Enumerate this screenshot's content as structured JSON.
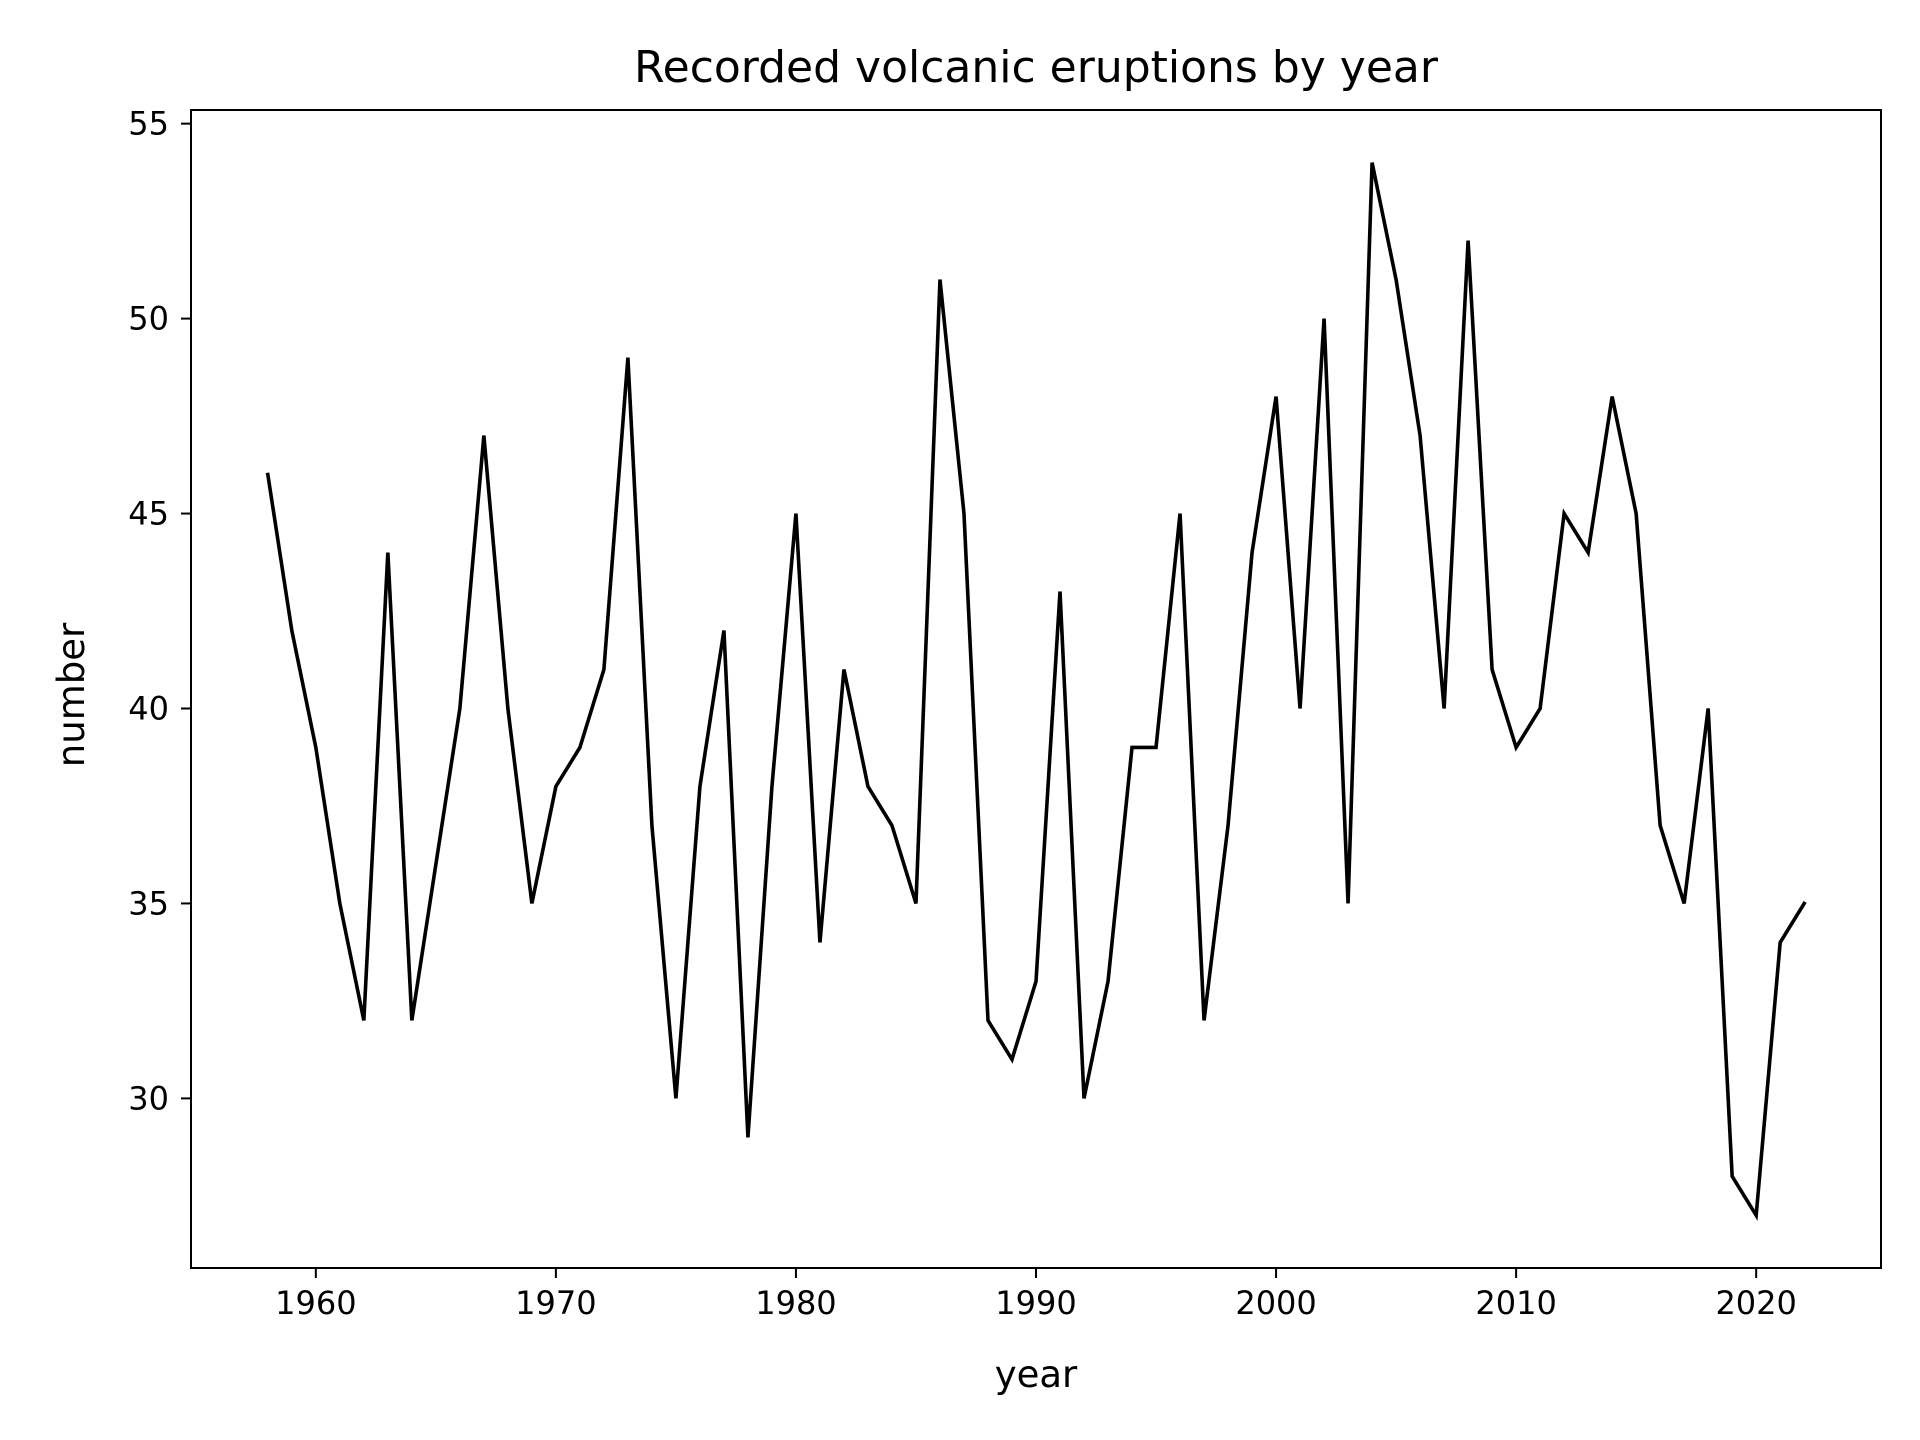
{
  "chart_data": {
    "type": "line",
    "title": "Recorded volcanic eruptions by year",
    "xlabel": "year",
    "ylabel": "number",
    "xlim": [
      1954.8,
      2025.2
    ],
    "ylim": [
      25.65,
      55.35
    ],
    "xticks": [
      1960,
      1970,
      1980,
      1990,
      2000,
      2010,
      2020
    ],
    "yticks": [
      30,
      35,
      40,
      45,
      50,
      55
    ],
    "grid": false,
    "line_color": "#000000",
    "series": [
      {
        "x": [
          1958,
          1959,
          1960,
          1961,
          1962,
          1963,
          1964,
          1965,
          1966,
          1967,
          1968,
          1969,
          1970,
          1971,
          1972,
          1973,
          1974,
          1975,
          1976,
          1977,
          1978,
          1979,
          1980,
          1981,
          1982,
          1983,
          1984,
          1985,
          1986,
          1987,
          1988,
          1989,
          1990,
          1991,
          1992,
          1993,
          1994,
          1995,
          1996,
          1997,
          1998,
          1999,
          2000,
          2001,
          2002,
          2003,
          2004,
          2005,
          2006,
          2007,
          2008,
          2009,
          2010,
          2011,
          2012,
          2013,
          2014,
          2015,
          2016,
          2017,
          2018,
          2019,
          2020,
          2021,
          2022
        ],
        "values": [
          46,
          42,
          39,
          35,
          32,
          44,
          32,
          36,
          40,
          47,
          40,
          35,
          38,
          39,
          41,
          49,
          37,
          30,
          38,
          42,
          29,
          38,
          45,
          34,
          41,
          38,
          37,
          35,
          51,
          45,
          32,
          31,
          33,
          43,
          30,
          33,
          39,
          39,
          45,
          32,
          37,
          44,
          48,
          40,
          50,
          35,
          54,
          51,
          47,
          40,
          52,
          41,
          39,
          40,
          45,
          44,
          48,
          45,
          37,
          35,
          40,
          28,
          27,
          34,
          35
        ]
      }
    ]
  }
}
